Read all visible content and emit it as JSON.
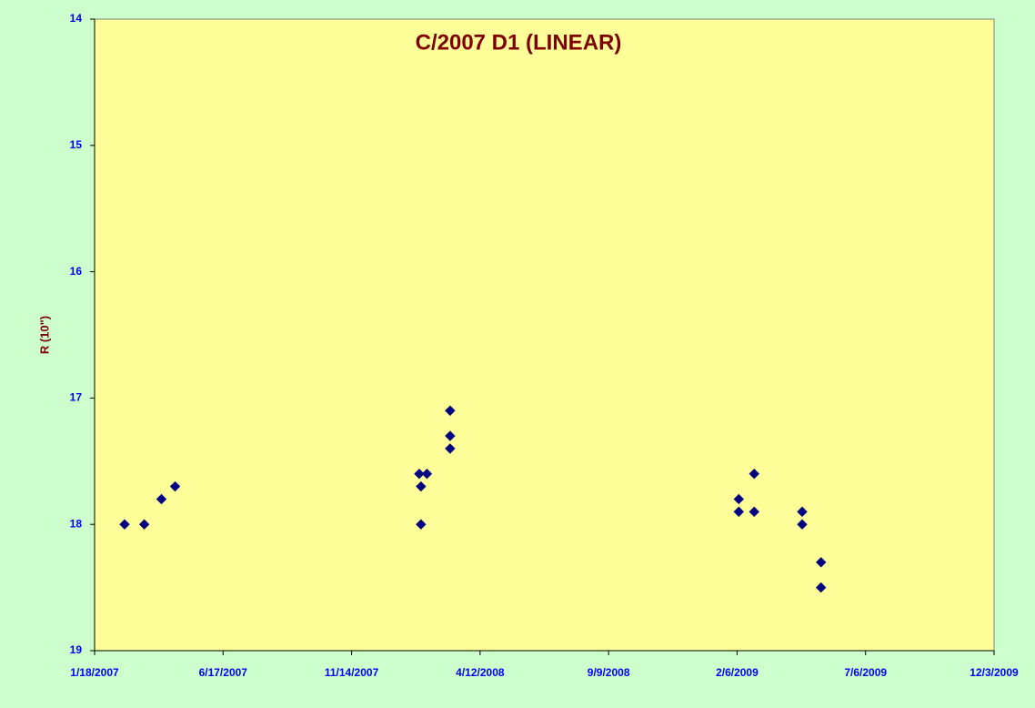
{
  "chart_data": {
    "type": "scatter",
    "title": "C/2007 D1 (LINEAR)",
    "y_label": "R (10\")",
    "x": [
      39135,
      39158,
      39178,
      39194,
      39479,
      39481,
      39481,
      39488,
      39515,
      39515,
      39515,
      39852,
      39852,
      39870,
      39870,
      39926,
      39926,
      39948,
      39948
    ],
    "values": [
      18.0,
      18.0,
      17.8,
      17.7,
      17.6,
      17.7,
      18.0,
      17.6,
      17.1,
      17.3,
      17.4,
      17.8,
      17.9,
      17.6,
      17.9,
      17.9,
      18.0,
      18.3,
      18.5
    ],
    "color": "#000080",
    "xlim": [
      39100,
      40150
    ],
    "xticks": [
      {
        "value": 39100,
        "label": "1/18/2007"
      },
      {
        "value": 39250,
        "label": "6/17/2007"
      },
      {
        "value": 39400,
        "label": "11/14/2007"
      },
      {
        "value": 39550,
        "label": "4/12/2008"
      },
      {
        "value": 39700,
        "label": "9/9/2008"
      },
      {
        "value": 39850,
        "label": "2/6/2009"
      },
      {
        "value": 40000,
        "label": "7/6/2009"
      },
      {
        "value": 40150,
        "label": "12/3/2009"
      }
    ],
    "ylim": [
      14,
      19
    ],
    "y_reversed": true,
    "yticks": [
      14,
      15,
      16,
      17,
      18,
      19
    ]
  }
}
